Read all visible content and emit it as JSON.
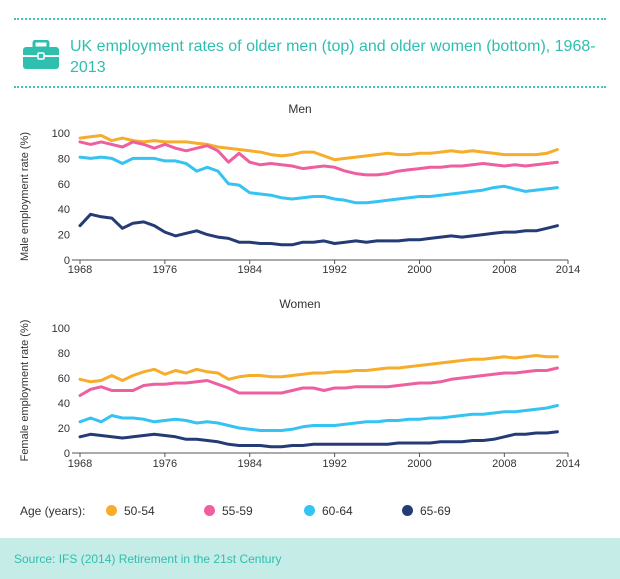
{
  "header": {
    "title": "UK employment rates of older men (top) and older women (bottom), 1968-2013",
    "icon": "briefcase-icon",
    "accent_color": "#2fbfae"
  },
  "chart_data": [
    {
      "type": "line",
      "subtitle": "Men",
      "ylabel": "Male employment rate (%)",
      "xlabel": "",
      "xlim": [
        1968,
        2014
      ],
      "ylim": [
        0,
        100
      ],
      "x_ticks": [
        "1968",
        "1976",
        "1984",
        "1992",
        "2000",
        "2008",
        "2014"
      ],
      "y_ticks": [
        "0",
        "20",
        "40",
        "60",
        "80",
        "100"
      ],
      "grid": false,
      "years": [
        1968,
        1969,
        1970,
        1971,
        1972,
        1973,
        1974,
        1975,
        1976,
        1977,
        1978,
        1979,
        1980,
        1981,
        1982,
        1983,
        1984,
        1985,
        1986,
        1987,
        1988,
        1989,
        1990,
        1991,
        1992,
        1993,
        1994,
        1995,
        1996,
        1997,
        1998,
        1999,
        2000,
        2001,
        2002,
        2003,
        2004,
        2005,
        2006,
        2007,
        2008,
        2009,
        2010,
        2011,
        2012,
        2013
      ],
      "series": [
        {
          "key": "50-54",
          "values": [
            96,
            97,
            98,
            94,
            96,
            94,
            93,
            94,
            93,
            93,
            93,
            92,
            91,
            89,
            88,
            87,
            86,
            85,
            83,
            82,
            83,
            85,
            85,
            82,
            79,
            80,
            81,
            82,
            83,
            84,
            83,
            83,
            84,
            84,
            85,
            86,
            85,
            86,
            85,
            84,
            83,
            83,
            83,
            83,
            84,
            87
          ]
        },
        {
          "key": "55-59",
          "values": [
            93,
            91,
            93,
            91,
            89,
            93,
            91,
            88,
            91,
            88,
            86,
            88,
            90,
            86,
            77,
            84,
            77,
            75,
            76,
            75,
            74,
            72,
            73,
            74,
            73,
            70,
            68,
            67,
            67,
            68,
            70,
            71,
            72,
            73,
            73,
            74,
            74,
            75,
            76,
            75,
            74,
            75,
            74,
            75,
            76,
            77
          ]
        },
        {
          "key": "60-64",
          "values": [
            81,
            80,
            81,
            80,
            76,
            80,
            80,
            80,
            78,
            78,
            76,
            70,
            73,
            70,
            60,
            59,
            53,
            52,
            51,
            49,
            48,
            49,
            50,
            50,
            48,
            47,
            45,
            45,
            46,
            47,
            48,
            49,
            50,
            50,
            51,
            52,
            53,
            54,
            55,
            57,
            58,
            56,
            54,
            55,
            56,
            57
          ]
        },
        {
          "key": "65-69",
          "values": [
            27,
            36,
            34,
            33,
            25,
            29,
            30,
            27,
            22,
            19,
            21,
            23,
            20,
            18,
            17,
            14,
            14,
            13,
            13,
            12,
            12,
            14,
            14,
            15,
            13,
            14,
            15,
            14,
            15,
            15,
            15,
            16,
            16,
            17,
            18,
            19,
            18,
            19,
            20,
            21,
            22,
            22,
            23,
            23,
            25,
            27
          ]
        }
      ]
    },
    {
      "type": "line",
      "subtitle": "Women",
      "ylabel": "Female employment rate (%)",
      "xlabel": "",
      "xlim": [
        1968,
        2014
      ],
      "ylim": [
        0,
        100
      ],
      "x_ticks": [
        "1968",
        "1976",
        "1984",
        "1992",
        "2000",
        "2008",
        "2014"
      ],
      "y_ticks": [
        "0",
        "20",
        "40",
        "60",
        "80",
        "100"
      ],
      "grid": false,
      "years": [
        1968,
        1969,
        1970,
        1971,
        1972,
        1973,
        1974,
        1975,
        1976,
        1977,
        1978,
        1979,
        1980,
        1981,
        1982,
        1983,
        1984,
        1985,
        1986,
        1987,
        1988,
        1989,
        1990,
        1991,
        1992,
        1993,
        1994,
        1995,
        1996,
        1997,
        1998,
        1999,
        2000,
        2001,
        2002,
        2003,
        2004,
        2005,
        2006,
        2007,
        2008,
        2009,
        2010,
        2011,
        2012,
        2013
      ],
      "series": [
        {
          "key": "50-54",
          "values": [
            59,
            57,
            58,
            62,
            58,
            62,
            65,
            67,
            63,
            66,
            64,
            67,
            65,
            64,
            59,
            61,
            62,
            62,
            61,
            61,
            62,
            63,
            64,
            64,
            65,
            65,
            66,
            66,
            67,
            68,
            68,
            69,
            70,
            71,
            72,
            73,
            74,
            75,
            75,
            76,
            77,
            76,
            77,
            78,
            77,
            77
          ]
        },
        {
          "key": "55-59",
          "values": [
            46,
            51,
            53,
            50,
            50,
            50,
            54,
            55,
            55,
            56,
            56,
            57,
            58,
            55,
            52,
            48,
            48,
            48,
            48,
            48,
            50,
            52,
            52,
            50,
            52,
            52,
            53,
            53,
            53,
            53,
            54,
            55,
            56,
            56,
            57,
            59,
            60,
            61,
            62,
            63,
            64,
            64,
            65,
            66,
            66,
            68
          ]
        },
        {
          "key": "60-64",
          "values": [
            25,
            28,
            25,
            30,
            28,
            28,
            27,
            25,
            26,
            27,
            26,
            24,
            25,
            24,
            22,
            20,
            19,
            18,
            18,
            18,
            19,
            21,
            22,
            22,
            22,
            23,
            24,
            25,
            25,
            26,
            26,
            27,
            27,
            28,
            28,
            29,
            30,
            31,
            31,
            32,
            33,
            33,
            34,
            35,
            36,
            38
          ]
        },
        {
          "key": "65-69",
          "values": [
            13,
            15,
            14,
            13,
            12,
            13,
            14,
            15,
            14,
            13,
            11,
            11,
            10,
            9,
            7,
            6,
            6,
            6,
            5,
            5,
            6,
            6,
            7,
            7,
            7,
            7,
            7,
            7,
            7,
            7,
            8,
            8,
            8,
            8,
            9,
            9,
            9,
            10,
            10,
            11,
            13,
            15,
            15,
            16,
            16,
            17
          ]
        }
      ]
    }
  ],
  "legend": {
    "title": "Age (years):",
    "items": [
      {
        "key": "50-54",
        "label": "50-54",
        "color": "#f6ad2b"
      },
      {
        "key": "55-59",
        "label": "55-59",
        "color": "#ee5f9f"
      },
      {
        "key": "60-64",
        "label": "60-64",
        "color": "#34c3f2"
      },
      {
        "key": "65-69",
        "label": "65-69",
        "color": "#243b76"
      }
    ]
  },
  "footer": {
    "text": "Source: IFS (2014) Retirement in the 21st Century",
    "background": "#c5ece7"
  }
}
